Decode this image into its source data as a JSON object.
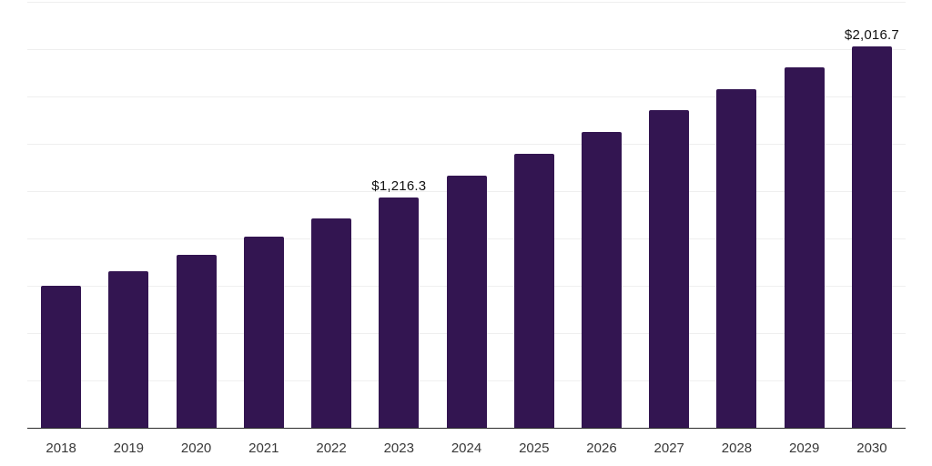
{
  "chart_data": {
    "type": "bar",
    "title": "",
    "xlabel": "",
    "ylabel": "",
    "categories": [
      "2018",
      "2019",
      "2020",
      "2021",
      "2022",
      "2023",
      "2024",
      "2025",
      "2026",
      "2027",
      "2028",
      "2029",
      "2030"
    ],
    "values": [
      750,
      829,
      915,
      1008,
      1108,
      1216.3,
      1331,
      1448,
      1564,
      1676,
      1789,
      1905,
      2016.7
    ],
    "data_labels": {
      "2023": "$1,216.3",
      "2030": "$2,016.7"
    },
    "ylim": [
      0,
      2250
    ],
    "gridline_interval": 250,
    "grid": "horizontal",
    "legend_position": "none",
    "colors": {
      "bar": "#331551",
      "grid": "#efefef",
      "axis": "#2b2b2b",
      "tick_label": "#383838",
      "data_label": "#111111",
      "background": "#ffffff"
    }
  }
}
